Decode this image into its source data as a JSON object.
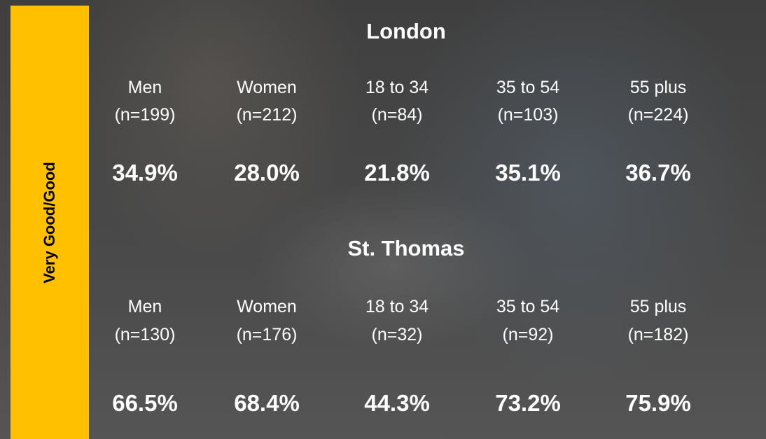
{
  "side_label": "Very Good/Good",
  "sections": [
    {
      "title": "London",
      "groups": [
        {
          "label": "Men",
          "n": "(n=199)",
          "value": "34.9%"
        },
        {
          "label": "Women",
          "n": "(n=212)",
          "value": "28.0%"
        },
        {
          "label": "18 to 34",
          "n": "(n=84)",
          "value": "21.8%"
        },
        {
          "label": "35 to 54",
          "n": "(n=103)",
          "value": "35.1%"
        },
        {
          "label": "55 plus",
          "n": "(n=224)",
          "value": "36.7%"
        }
      ]
    },
    {
      "title": "St. Thomas",
      "groups": [
        {
          "label": "Men",
          "n": "(n=130)",
          "value": "66.5%"
        },
        {
          "label": "Women",
          "n": "(n=176)",
          "value": "68.4%"
        },
        {
          "label": "18 to 34",
          "n": "(n=32)",
          "value": "44.3%"
        },
        {
          "label": "35 to 54",
          "n": "(n=92)",
          "value": "73.2%"
        },
        {
          "label": "55 plus",
          "n": "(n=182)",
          "value": "75.9%"
        }
      ]
    }
  ]
}
